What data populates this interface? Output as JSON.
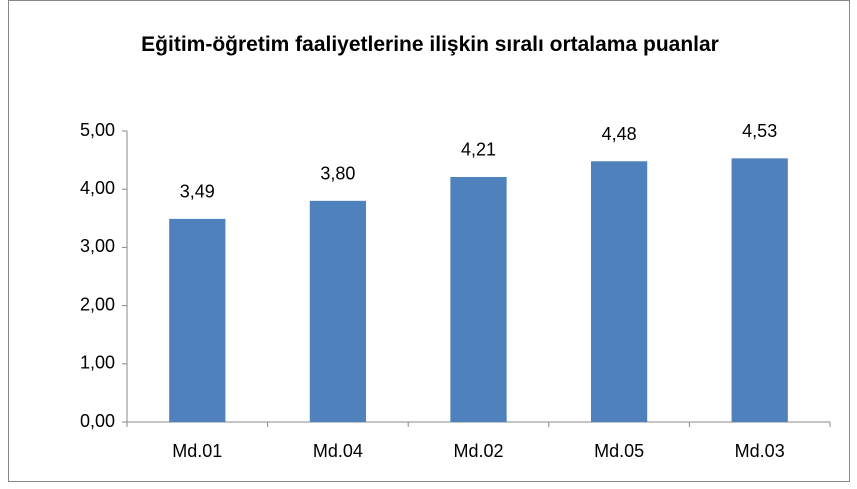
{
  "chart_data": {
    "type": "bar",
    "title": "Eğitim-öğretim faaliyetlerine ilişkin sıralı ortalama puanlar",
    "categories": [
      "Md.01",
      "Md.04",
      "Md.02",
      "Md.05",
      "Md.03"
    ],
    "values": [
      3.49,
      3.8,
      4.21,
      4.48,
      4.53
    ],
    "value_labels": [
      "3,49",
      "3,80",
      "4,21",
      "4,48",
      "4,53"
    ],
    "color": "#4f81bd",
    "ylim": [
      0,
      5
    ],
    "yticks": [
      {
        "value": 0,
        "label": "0,00"
      },
      {
        "value": 1,
        "label": "1,00"
      },
      {
        "value": 2,
        "label": "2,00"
      },
      {
        "value": 3,
        "label": "3,00"
      },
      {
        "value": 4,
        "label": "4,00"
      },
      {
        "value": 5,
        "label": "5,00"
      }
    ],
    "grid": false
  }
}
